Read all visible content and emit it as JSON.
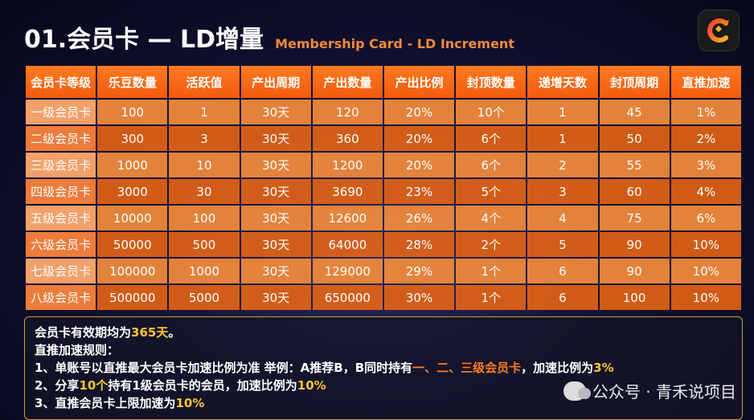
{
  "header": {
    "title": "01.会员卡 — LD增量",
    "subtitle": "Membership Card - LD Increment"
  },
  "logo_icon": "app-logo-icon",
  "colors": {
    "accent": "#f25a0c",
    "highlight": "#ffc533"
  },
  "table": {
    "headers": [
      "会员卡等级",
      "乐豆数量",
      "活跃值",
      "产出周期",
      "产出数量",
      "产出比例",
      "封顶数量",
      "递增天数",
      "封顶周期",
      "直推加速"
    ],
    "rows": [
      [
        "一级会员卡",
        "100",
        "1",
        "30天",
        "120",
        "20%",
        "10个",
        "1",
        "45",
        "1%"
      ],
      [
        "二级会员卡",
        "300",
        "3",
        "30天",
        "360",
        "20%",
        "6个",
        "1",
        "50",
        "2%"
      ],
      [
        "三级会员卡",
        "1000",
        "10",
        "30天",
        "1200",
        "20%",
        "6个",
        "2",
        "55",
        "3%"
      ],
      [
        "四级会员卡",
        "3000",
        "30",
        "30天",
        "3690",
        "23%",
        "5个",
        "3",
        "60",
        "4%"
      ],
      [
        "五级会员卡",
        "10000",
        "100",
        "30天",
        "12600",
        "26%",
        "4个",
        "4",
        "75",
        "6%"
      ],
      [
        "六级会员卡",
        "50000",
        "500",
        "30天",
        "64000",
        "28%",
        "2个",
        "5",
        "90",
        "10%"
      ],
      [
        "七级会员卡",
        "100000",
        "1000",
        "30天",
        "129000",
        "29%",
        "1个",
        "6",
        "90",
        "10%"
      ],
      [
        "八级会员卡",
        "500000",
        "5000",
        "30天",
        "650000",
        "30%",
        "1个",
        "6",
        "100",
        "10%"
      ]
    ]
  },
  "notes": {
    "line1_a": "会员卡有效期均为",
    "line1_b": "365天",
    "line1_c": "。",
    "line2": "直推加速规则：",
    "line3_a": "1、单账号以直推最大会员卡加速比例为准    举例：A推荐B，B同时持有",
    "line3_b": "一、二、三级会员卡",
    "line3_c": "，加速比例为",
    "line3_d": "3%",
    "line4_a": "2、分享",
    "line4_b": "10个",
    "line4_c": "持有1级会员卡的会员，加速比例为",
    "line4_d": "10%",
    "line5_a": "3、直推会员卡上限加速为",
    "line5_b": "10%"
  },
  "watermark": {
    "icon": "wechat-icon",
    "text": "公众号 · 青禾说项目"
  }
}
